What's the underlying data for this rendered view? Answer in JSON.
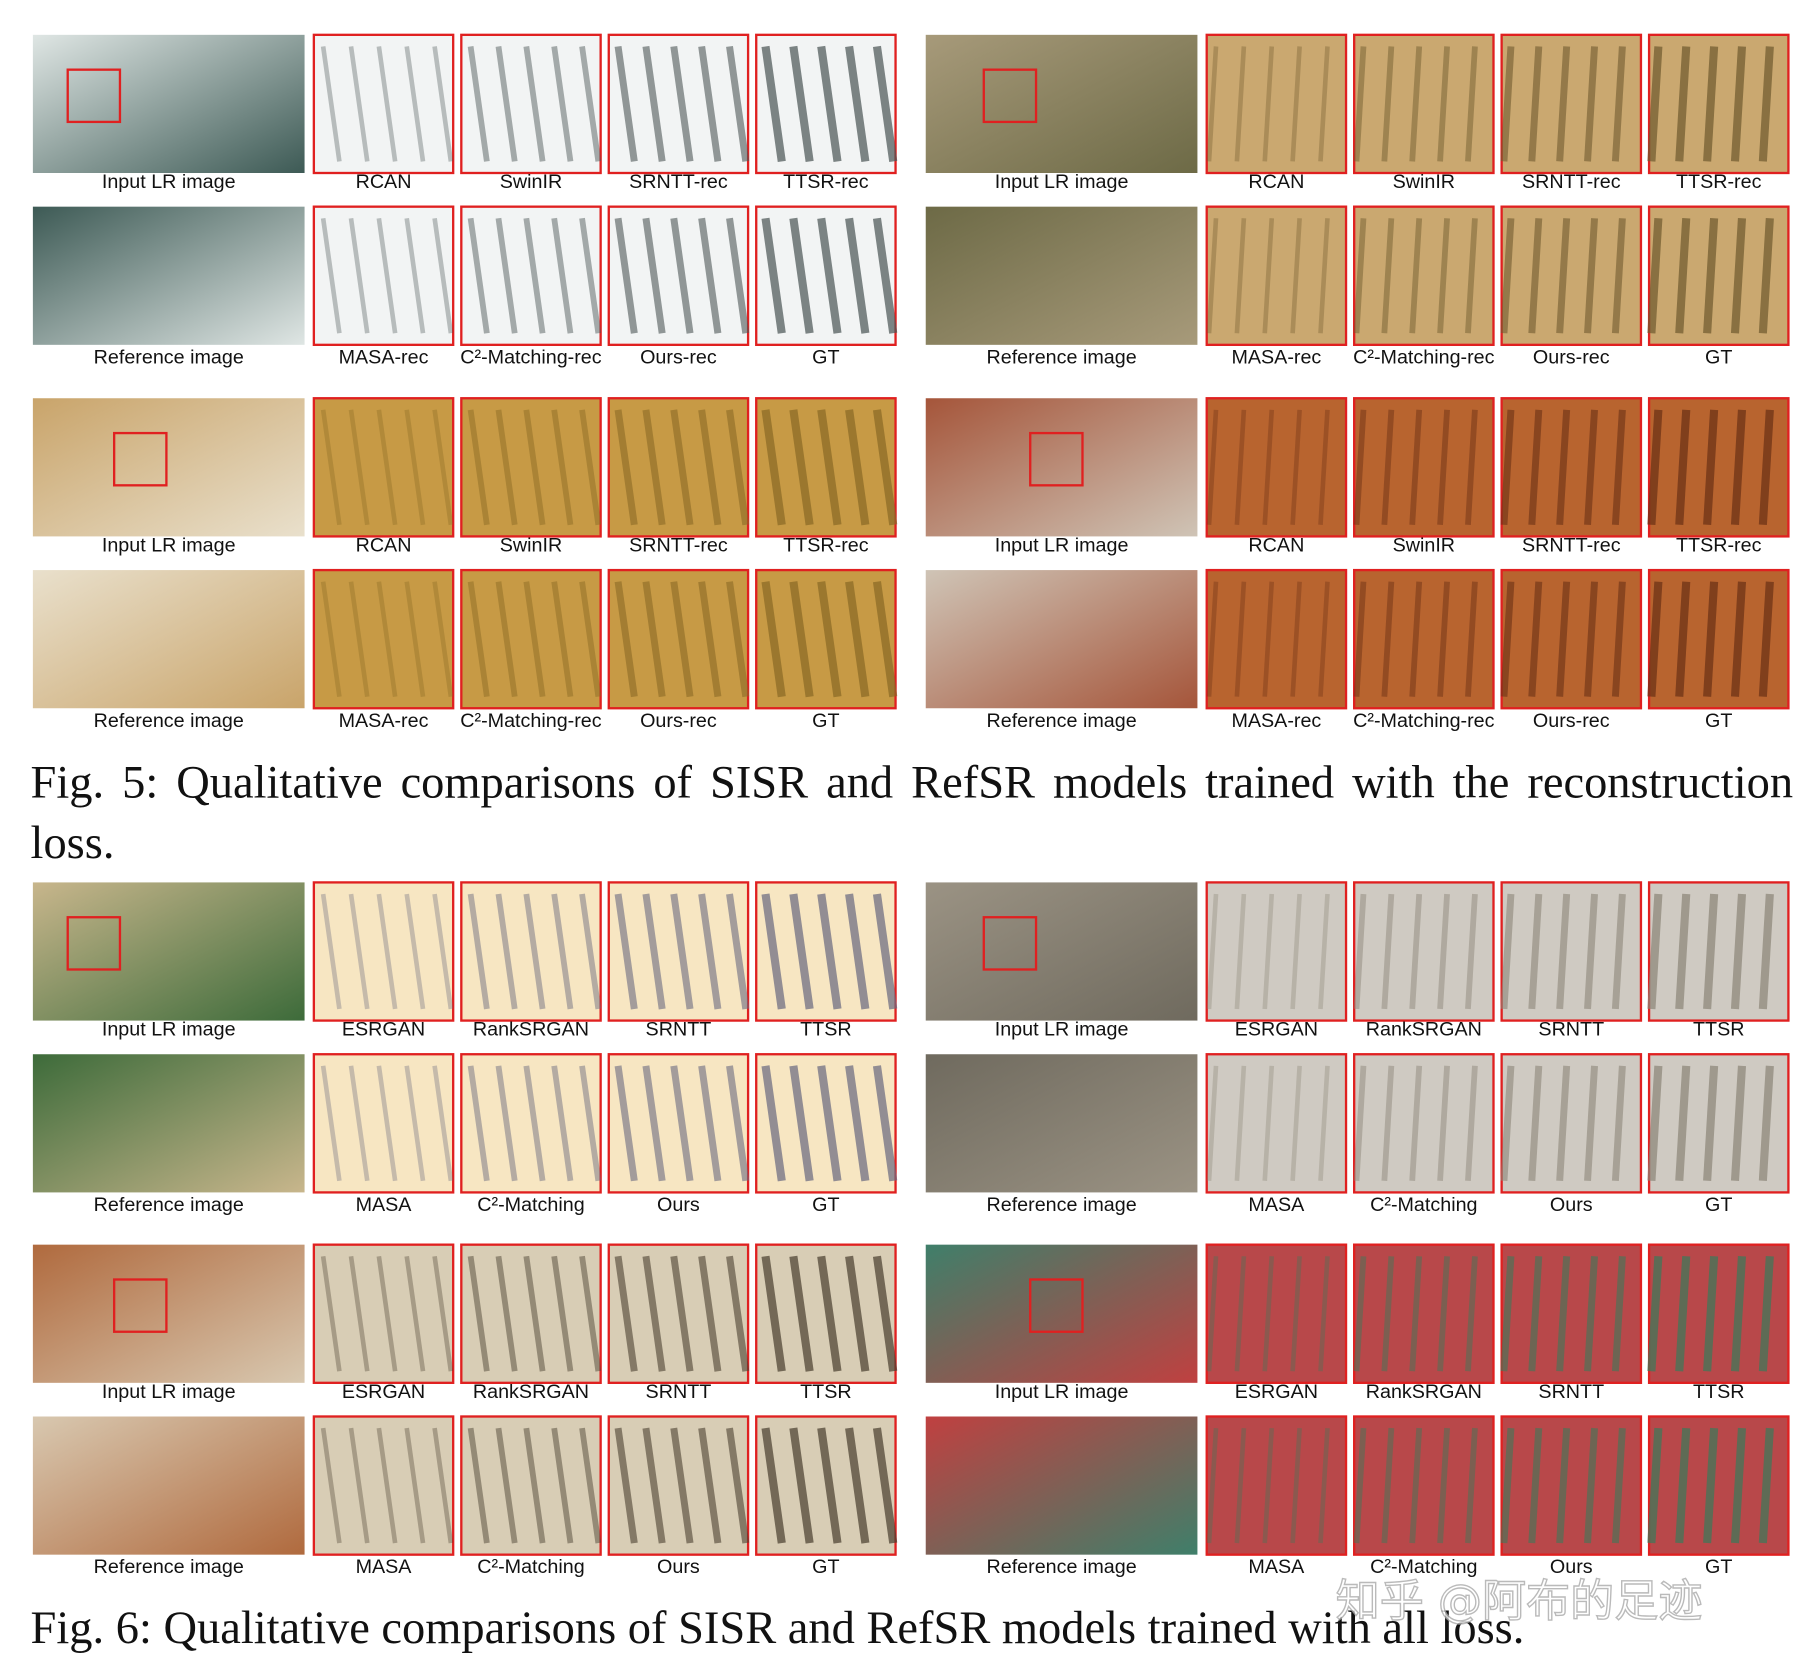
{
  "figures": [
    {
      "groups": [
        {
          "rows": [
            {
              "labels": [
                "Input LR image",
                "RCAN",
                "SwinIR",
                "SRNTT-rec",
                "TTSR-rec"
              ]
            },
            {
              "labels": [
                "Reference image",
                "MASA-rec",
                "C²-Matching-rec",
                "Ours-rec",
                "GT"
              ]
            }
          ]
        },
        {
          "rows": [
            {
              "labels": [
                "Input LR image",
                "RCAN",
                "SwinIR",
                "SRNTT-rec",
                "TTSR-rec"
              ]
            },
            {
              "labels": [
                "Reference image",
                "MASA-rec",
                "C²-Matching-rec",
                "Ours-rec",
                "GT"
              ]
            }
          ]
        },
        {
          "rows": [
            {
              "labels": [
                "Input LR image",
                "RCAN",
                "SwinIR",
                "SRNTT-rec",
                "TTSR-rec"
              ]
            },
            {
              "labels": [
                "Reference image",
                "MASA-rec",
                "C²-Matching-rec",
                "Ours-rec",
                "GT"
              ]
            }
          ]
        },
        {
          "rows": [
            {
              "labels": [
                "Input LR image",
                "RCAN",
                "SwinIR",
                "SRNTT-rec",
                "TTSR-rec"
              ]
            },
            {
              "labels": [
                "Reference image",
                "MASA-rec",
                "C²-Matching-rec",
                "Ours-rec",
                "GT"
              ]
            }
          ]
        }
      ],
      "caption": "Fig. 5: Qualitative comparisons of SISR and RefSR models trained with the reconstruction loss."
    },
    {
      "groups": [
        {
          "rows": [
            {
              "labels": [
                "Input LR image",
                "ESRGAN",
                "RankSRGAN",
                "SRNTT",
                "TTSR"
              ]
            },
            {
              "labels": [
                "Reference image",
                "MASA",
                "C²-Matching",
                "Ours",
                "GT"
              ]
            }
          ]
        },
        {
          "rows": [
            {
              "labels": [
                "Input LR image",
                "ESRGAN",
                "RankSRGAN",
                "SRNTT",
                "TTSR"
              ]
            },
            {
              "labels": [
                "Reference image",
                "MASA",
                "C²-Matching",
                "Ours",
                "GT"
              ]
            }
          ]
        },
        {
          "rows": [
            {
              "labels": [
                "Input LR image",
                "ESRGAN",
                "RankSRGAN",
                "SRNTT",
                "TTSR"
              ]
            },
            {
              "labels": [
                "Reference image",
                "MASA",
                "C²-Matching",
                "Ours",
                "GT"
              ]
            }
          ]
        },
        {
          "rows": [
            {
              "labels": [
                "Input LR image",
                "ESRGAN",
                "RankSRGAN",
                "SRNTT",
                "TTSR"
              ]
            },
            {
              "labels": [
                "Reference image",
                "MASA",
                "C²-Matching",
                "Ours",
                "GT"
              ]
            }
          ]
        }
      ],
      "caption": "Fig. 6: Qualitative comparisons of SISR and RefSR models trained with all loss."
    }
  ],
  "watermark": "知乎 @阿布的足迹"
}
